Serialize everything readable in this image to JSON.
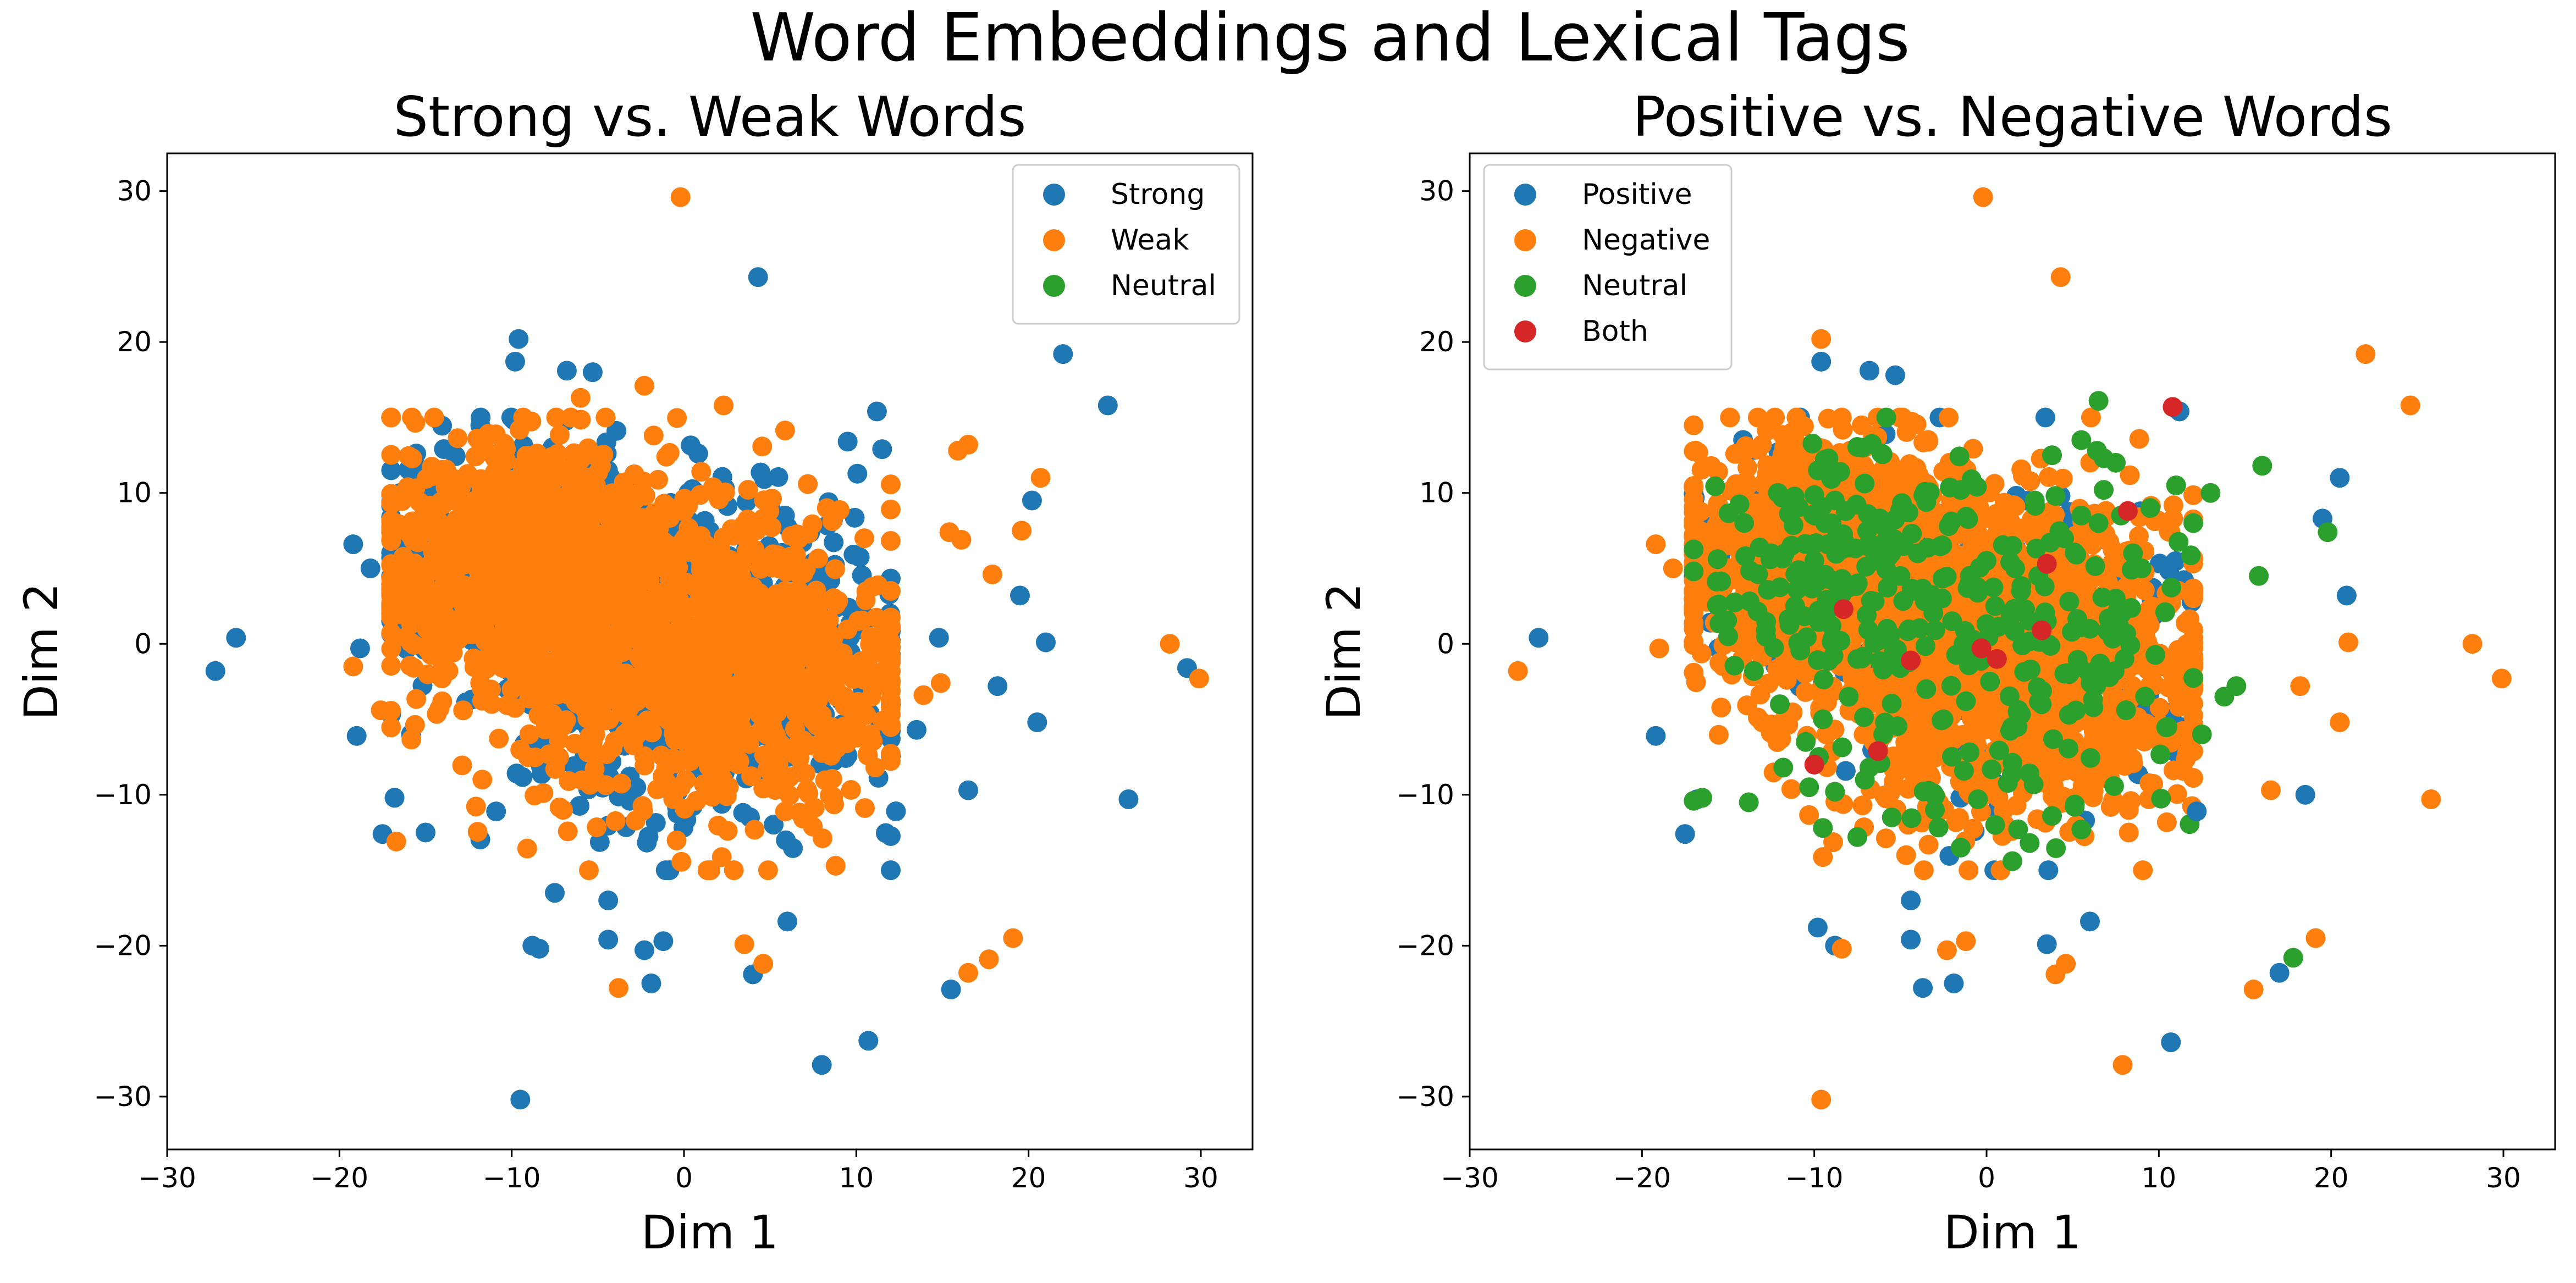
{
  "figure": {
    "suptitle": "Word Embeddings and Lexical Tags"
  },
  "chart_data": [
    {
      "type": "scatter",
      "title": "Strong vs. Weak Words",
      "xlabel": "Dim 1",
      "ylabel": "Dim 2",
      "xlim": [
        -30,
        33
      ],
      "ylim": [
        -33.5,
        32.5
      ],
      "xticks": [
        -30,
        -20,
        -10,
        0,
        10,
        20,
        30
      ],
      "yticks": [
        -30,
        -20,
        -10,
        0,
        10,
        20,
        30
      ],
      "tick_labels": {
        "x": [
          "−30",
          "−20",
          "−10",
          "0",
          "10",
          "20",
          "30"
        ],
        "y": [
          "−30",
          "−20",
          "−10",
          "0",
          "10",
          "20",
          "30"
        ]
      },
      "grid": false,
      "legend": "top-right",
      "dense_cluster_approx": {
        "x_range": [
          -17,
          12
        ],
        "y_range": [
          -15,
          15
        ],
        "n_points_est": 3000
      },
      "series": [
        {
          "name": "Strong",
          "color": "#1f77b4",
          "points": [
            [
              -27.2,
              -1.8
            ],
            [
              -26,
              0.4
            ],
            [
              -19.2,
              6.6
            ],
            [
              -19,
              -6.1
            ],
            [
              -18.8,
              -0.3
            ],
            [
              -18.2,
              5
            ],
            [
              -17.5,
              -12.6
            ],
            [
              -16.8,
              -10.2
            ],
            [
              -15,
              -12.5
            ],
            [
              -9.5,
              -30.2
            ],
            [
              -9.6,
              20.2
            ],
            [
              -9.8,
              18.7
            ],
            [
              -8.8,
              -20
            ],
            [
              -8.4,
              -20.2
            ],
            [
              -7.5,
              -16.5
            ],
            [
              -6.8,
              18.1
            ],
            [
              -5.3,
              18
            ],
            [
              -4.4,
              -17
            ],
            [
              -4.4,
              -19.6
            ],
            [
              -2.3,
              -20.3
            ],
            [
              -1.9,
              -22.5
            ],
            [
              -1.2,
              -19.7
            ],
            [
              4.3,
              24.3
            ],
            [
              4,
              -21.9
            ],
            [
              6,
              -18.4
            ],
            [
              8,
              -27.9
            ],
            [
              10.7,
              -26.3
            ],
            [
              15.5,
              -22.9
            ],
            [
              16.5,
              -9.7
            ],
            [
              18.2,
              -2.8
            ],
            [
              19.5,
              3.2
            ],
            [
              20.5,
              -5.2
            ],
            [
              20.2,
              9.5
            ],
            [
              21,
              0.1
            ],
            [
              22,
              19.2
            ],
            [
              24.6,
              15.8
            ],
            [
              25.8,
              -10.3
            ],
            [
              29.2,
              -1.6
            ],
            [
              12.3,
              -11.1
            ],
            [
              13.5,
              -5.7
            ],
            [
              14.8,
              0.4
            ],
            [
              11.2,
              15.4
            ],
            [
              11.5,
              12.9
            ],
            [
              9.5,
              13.4
            ]
          ]
        },
        {
          "name": "Weak",
          "color": "#ff7f0e",
          "points": [
            [
              -0.2,
              29.6
            ],
            [
              -3.8,
              -22.8
            ],
            [
              3.5,
              -19.9
            ],
            [
              4.6,
              -21.2
            ],
            [
              16.5,
              -21.8
            ],
            [
              17.7,
              -20.9
            ],
            [
              19.1,
              -19.5
            ],
            [
              28.2,
              0
            ],
            [
              29.9,
              -2.3
            ],
            [
              20.7,
              11
            ],
            [
              19.6,
              7.5
            ],
            [
              17.9,
              4.6
            ],
            [
              16.1,
              6.9
            ],
            [
              15.4,
              7.4
            ],
            [
              16.5,
              13.2
            ],
            [
              15.9,
              12.8
            ],
            [
              14.9,
              -2.6
            ],
            [
              13.9,
              -3.4
            ],
            [
              -6,
              16.3
            ],
            [
              -19.2,
              -1.5
            ],
            [
              -17.6,
              -4.4
            ],
            [
              -16.7,
              -13.1
            ],
            [
              -12,
              13.6
            ],
            [
              -2.3,
              17.1
            ],
            [
              2.3,
              15.8
            ]
          ]
        },
        {
          "name": "Neutral",
          "color": "#2ca02c",
          "points": []
        }
      ]
    },
    {
      "type": "scatter",
      "title": "Positive vs. Negative Words",
      "xlabel": "Dim 1",
      "ylabel": "Dim 2",
      "xlim": [
        -30,
        33
      ],
      "ylim": [
        -33.5,
        32.5
      ],
      "xticks": [
        -30,
        -20,
        -10,
        0,
        10,
        20,
        30
      ],
      "yticks": [
        -30,
        -20,
        -10,
        0,
        10,
        20,
        30
      ],
      "tick_labels": {
        "x": [
          "−30",
          "−20",
          "−10",
          "0",
          "10",
          "20",
          "30"
        ],
        "y": [
          "−30",
          "−20",
          "−10",
          "0",
          "10",
          "20",
          "30"
        ]
      },
      "grid": false,
      "legend": "top-left",
      "dense_cluster_approx": {
        "x_range": [
          -17,
          12
        ],
        "y_range": [
          -15,
          15
        ],
        "n_points_est": 3000
      },
      "series": [
        {
          "name": "Positive",
          "color": "#1f77b4",
          "points": [
            [
              -26,
              0.4
            ],
            [
              -19.2,
              -6.1
            ],
            [
              -17.5,
              -12.6
            ],
            [
              -16.8,
              -10.3
            ],
            [
              -9.8,
              -18.8
            ],
            [
              -9.6,
              18.7
            ],
            [
              -8.8,
              -20
            ],
            [
              -6.8,
              18.1
            ],
            [
              -5.3,
              17.8
            ],
            [
              -4.4,
              -17
            ],
            [
              -4.4,
              -19.6
            ],
            [
              -3.7,
              -22.8
            ],
            [
              -1.9,
              -22.5
            ],
            [
              3.5,
              -19.9
            ],
            [
              6,
              -18.4
            ],
            [
              10.7,
              -26.4
            ],
            [
              17,
              -21.8
            ],
            [
              18.5,
              -10
            ],
            [
              19.5,
              8.3
            ],
            [
              20.5,
              11
            ],
            [
              20.9,
              3.2
            ],
            [
              11.2,
              15.4
            ],
            [
              12.2,
              -11.1
            ]
          ]
        },
        {
          "name": "Negative",
          "color": "#ff7f0e",
          "points": [
            [
              -0.2,
              29.6
            ],
            [
              -27.2,
              -1.8
            ],
            [
              -9.6,
              -30.2
            ],
            [
              4.3,
              24.3
            ],
            [
              -9.6,
              20.2
            ],
            [
              7.9,
              -27.9
            ],
            [
              15.5,
              -22.9
            ],
            [
              19.1,
              -19.5
            ],
            [
              22,
              19.2
            ],
            [
              24.6,
              15.8
            ],
            [
              25.8,
              -10.3
            ],
            [
              28.2,
              0
            ],
            [
              29.9,
              -2.3
            ],
            [
              4,
              -21.9
            ],
            [
              4.6,
              -21.2
            ],
            [
              -1.2,
              -19.7
            ],
            [
              -2.3,
              -20.3
            ],
            [
              -8.4,
              -20.2
            ],
            [
              -19.2,
              6.6
            ],
            [
              -19,
              -0.3
            ],
            [
              -18.2,
              5
            ],
            [
              16.5,
              -9.7
            ],
            [
              20.5,
              -5.2
            ],
            [
              21,
              0.1
            ],
            [
              18.2,
              -2.8
            ]
          ]
        },
        {
          "name": "Neutral",
          "color": "#2ca02c",
          "points": [
            [
              6.5,
              16.1
            ],
            [
              -8.5,
              11.4
            ],
            [
              -7.2,
              13
            ],
            [
              -3.5,
              9.4
            ],
            [
              -2.2,
              7.8
            ],
            [
              0,
              5.5
            ],
            [
              1.5,
              6.5
            ],
            [
              3,
              4.5
            ],
            [
              4.5,
              7
            ],
            [
              5.5,
              8.5
            ],
            [
              6.8,
              10.2
            ],
            [
              7.5,
              12
            ],
            [
              8.5,
              6
            ],
            [
              9.5,
              9
            ],
            [
              11,
              10.5
            ],
            [
              12,
              8
            ],
            [
              13,
              10
            ],
            [
              -12.5,
              6
            ],
            [
              -11,
              3.6
            ],
            [
              -10,
              5.5
            ],
            [
              -9,
              1.2
            ],
            [
              -7.5,
              -1
            ],
            [
              -6.5,
              2.8
            ],
            [
              -5,
              4.5
            ],
            [
              -4,
              6
            ],
            [
              -3,
              3
            ],
            [
              -2,
              1.5
            ],
            [
              -1,
              4
            ],
            [
              0.5,
              2.5
            ],
            [
              2,
              3.5
            ],
            [
              3.5,
              1.5
            ],
            [
              4.8,
              2.8
            ],
            [
              6,
              1
            ],
            [
              7.5,
              3
            ],
            [
              -15,
              0.5
            ],
            [
              -13.5,
              -1.8
            ],
            [
              -12,
              -4
            ],
            [
              -10.5,
              -6.5
            ],
            [
              -9.5,
              -5
            ],
            [
              -8,
              -3.5
            ],
            [
              -6,
              -6
            ],
            [
              -4.5,
              -1.2
            ],
            [
              -3.5,
              -3
            ],
            [
              -2.5,
              -5
            ],
            [
              -1.2,
              -3.8
            ],
            [
              0.2,
              -2.5
            ],
            [
              1.8,
              -5.5
            ],
            [
              3.2,
              -4
            ],
            [
              4.8,
              -2
            ],
            [
              6.2,
              -4.2
            ],
            [
              8,
              -1
            ],
            [
              9.2,
              -3.5
            ],
            [
              10.5,
              -5.5
            ],
            [
              12.5,
              -6
            ],
            [
              13.8,
              -3.5
            ],
            [
              14.5,
              -2.8
            ],
            [
              15.8,
              4.5
            ],
            [
              16,
              11.8
            ],
            [
              19.8,
              7.4
            ],
            [
              17.8,
              -20.8
            ],
            [
              -16.5,
              -10.2
            ],
            [
              -17,
              -10.4
            ],
            [
              -9.5,
              -12.2
            ],
            [
              -7.5,
              -12.8
            ],
            [
              -5.5,
              -11.5
            ],
            [
              -3,
              -11
            ],
            [
              -1.5,
              -13.5
            ],
            [
              0.5,
              -12
            ],
            [
              2.5,
              -13.2
            ],
            [
              3.8,
              -11.4
            ],
            [
              5.5,
              -12.3
            ],
            [
              1.5,
              -14.4
            ],
            [
              -0.5,
              -10.3
            ],
            [
              6.5,
              8
            ],
            [
              7.8,
              8.5
            ],
            [
              9,
              5
            ],
            [
              2.8,
              9.5
            ],
            [
              -1.5,
              10.2
            ],
            [
              4,
              9.8
            ],
            [
              6.8,
              12.3
            ],
            [
              3.8,
              12.5
            ],
            [
              5.5,
              13.5
            ],
            [
              -13.8,
              -10.5
            ],
            [
              -11.8,
              -8.2
            ],
            [
              -10.3,
              -9.5
            ],
            [
              -8.8,
              -9.8
            ],
            [
              -6.8,
              -8.2
            ]
          ]
        },
        {
          "name": "Both",
          "color": "#d62728",
          "points": [
            [
              10.8,
              15.7
            ],
            [
              8.2,
              8.8
            ],
            [
              3.5,
              5.3
            ],
            [
              -8.3,
              2.3
            ],
            [
              3.2,
              0.9
            ],
            [
              -4.4,
              -1.1
            ],
            [
              0.6,
              -1
            ],
            [
              -0.3,
              -0.3
            ],
            [
              -6.3,
              -7.1
            ],
            [
              -10,
              -8
            ]
          ]
        }
      ]
    }
  ]
}
